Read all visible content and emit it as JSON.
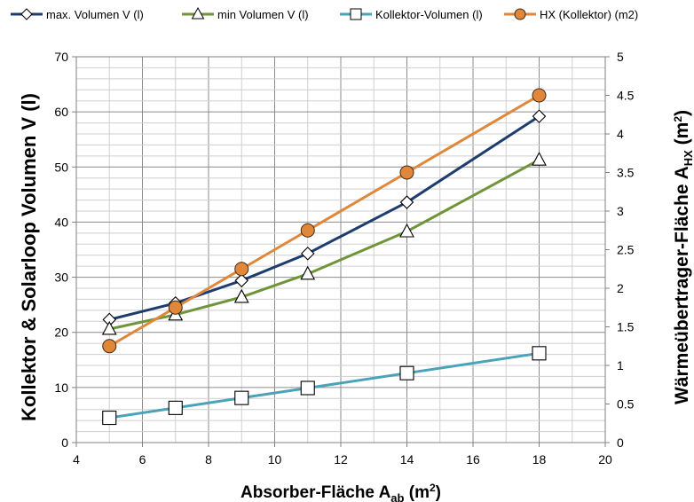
{
  "chart_data": {
    "type": "line",
    "xlabel": {
      "main": "Absorber-Fläche A",
      "sub": "ab",
      "tail": " (m",
      "sup": "2",
      "end": ")"
    },
    "ylabel": "Kollektor & Solarloop Volumen V (l)",
    "y2label": {
      "main": "Wärmeübertrager-Fläche A",
      "sub": "HX",
      "tail": " (m",
      "sup": "2",
      "end": ")"
    },
    "xlim": [
      4,
      20
    ],
    "ylim": [
      0,
      70
    ],
    "y2lim": [
      0,
      5
    ],
    "xticks": [
      "4",
      "6",
      "8",
      "10",
      "12",
      "14",
      "16",
      "18",
      "20"
    ],
    "yticks": [
      "0",
      "10",
      "20",
      "30",
      "40",
      "50",
      "60",
      "70"
    ],
    "y2ticks": [
      "0",
      "0.5",
      "1",
      "1.5",
      "2",
      "2.5",
      "3",
      "3.5",
      "4",
      "4.5",
      "5"
    ],
    "grid": true,
    "legend_position": "top",
    "series": [
      {
        "name": "max. Volumen V (l)",
        "axis": "left",
        "marker": "diamond",
        "color": "#1f3c6e",
        "x": [
          5,
          7,
          9,
          11,
          14,
          18
        ],
        "y": [
          22.3,
          25.3,
          29.4,
          34.3,
          43.6,
          59.2
        ]
      },
      {
        "name": "min Volumen V (l)",
        "axis": "left",
        "marker": "triangle",
        "color": "#70943a",
        "x": [
          5,
          7,
          9,
          11,
          14,
          18
        ],
        "y": [
          20.6,
          23.2,
          26.4,
          30.6,
          38.3,
          51.3
        ]
      },
      {
        "name": "Kollektor-Volumen (l)",
        "axis": "left",
        "marker": "square",
        "color": "#4aa3b8",
        "x": [
          5,
          7,
          9,
          11,
          14,
          18
        ],
        "y": [
          4.5,
          6.3,
          8.1,
          9.9,
          12.6,
          16.2
        ]
      },
      {
        "name": "HX (Kollektor) (m2)",
        "axis": "right",
        "marker": "circle",
        "color": "#e0873a",
        "x": [
          5,
          7,
          9,
          11,
          14,
          18
        ],
        "y": [
          1.25,
          1.75,
          2.25,
          2.75,
          3.5,
          4.5
        ]
      }
    ]
  }
}
